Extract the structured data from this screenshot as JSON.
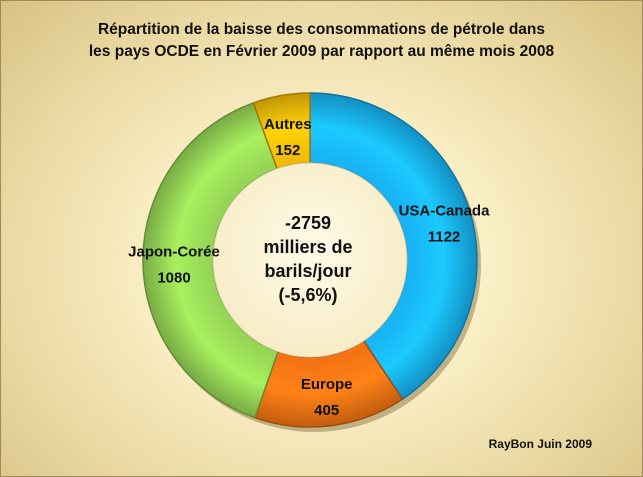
{
  "chart_data": {
    "type": "pie",
    "subtype": "donut",
    "title_line1": "Répartition de la baisse des consommations de pétrole  dans",
    "title_line2": "les pays OCDE en Février 2009  par rapport au même mois 2008",
    "slices": [
      {
        "label": "USA-Canada",
        "value": 1122,
        "display": "1122",
        "color": "#18b4f4"
      },
      {
        "label": "Europe",
        "value": 405,
        "display": "405",
        "color": "#f47414"
      },
      {
        "label": "Japon-Corée",
        "value": 1080,
        "display": "1080",
        "color": "#96d655"
      },
      {
        "label": "Autres",
        "value": 152,
        "display": "152",
        "color": "#f2bc08"
      }
    ],
    "center_lines": [
      "-2759",
      "milliers de",
      "barils/jour",
      "(-5,6%)"
    ],
    "credit": "RayBon Juin 2009"
  }
}
